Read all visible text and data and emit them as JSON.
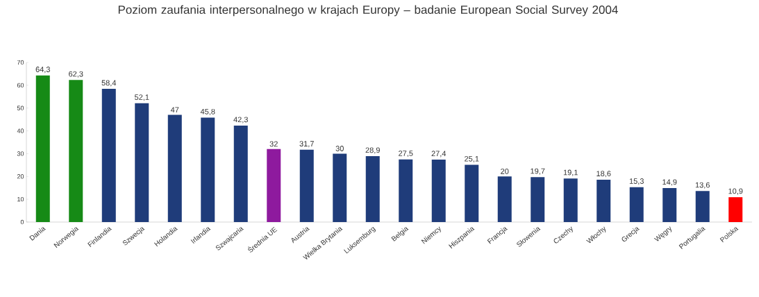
{
  "chart_data": {
    "type": "bar",
    "title": "Poziom zaufania interpersonalnego w krajach Europy – badanie European Social Survey 2004",
    "categories": [
      "Dania",
      "Norwegia",
      "Finlandia",
      "Szwecja",
      "Holandia",
      "Irlandia",
      "Szwajcaria",
      "Średnia UE",
      "Austria",
      "Wielka Brytania",
      "Luksemburg",
      "Belgia",
      "Niemcy",
      "Hiszpania",
      "Francja",
      "Słowenia",
      "Czechy",
      "Włochy",
      "Grecja",
      "Węgry",
      "Portugalia",
      "Polska"
    ],
    "values": [
      64.3,
      62.3,
      58.4,
      52.1,
      47,
      45.8,
      42.3,
      32,
      31.7,
      30,
      28.9,
      27.5,
      27.4,
      25.1,
      20,
      19.7,
      19.1,
      18.6,
      15.3,
      14.9,
      13.6,
      10.9
    ],
    "value_labels": [
      "64,3",
      "62,3",
      "58,4",
      "52,1",
      "47",
      "45,8",
      "42,3",
      "32",
      "31,7",
      "30",
      "28,9",
      "27,5",
      "27,4",
      "25,1",
      "20",
      "19,7",
      "19,1",
      "18,6",
      "15,3",
      "14,9",
      "13,6",
      "10,9"
    ],
    "colors": [
      "#168a16",
      "#168a16",
      "#1f3c7a",
      "#1f3c7a",
      "#1f3c7a",
      "#1f3c7a",
      "#1f3c7a",
      "#8e1a9e",
      "#1f3c7a",
      "#1f3c7a",
      "#1f3c7a",
      "#1f3c7a",
      "#1f3c7a",
      "#1f3c7a",
      "#1f3c7a",
      "#1f3c7a",
      "#1f3c7a",
      "#1f3c7a",
      "#1f3c7a",
      "#1f3c7a",
      "#1f3c7a",
      "#ff0000"
    ],
    "ylim": [
      0,
      70
    ],
    "yticks": [
      0,
      10,
      20,
      30,
      40,
      50,
      60,
      70
    ]
  }
}
